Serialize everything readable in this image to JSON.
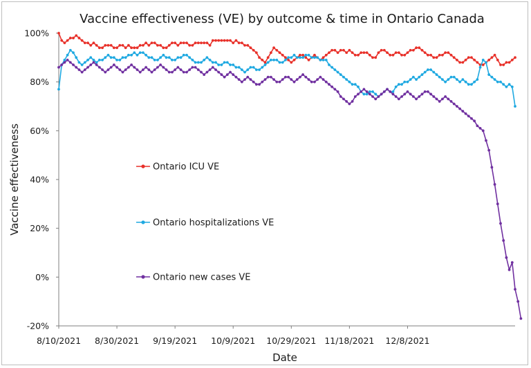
{
  "chart_data": {
    "type": "line",
    "title": "Vaccine effectiveness (VE) by outcome & time in Ontario Canada",
    "xlabel": "Date",
    "ylabel": "Vaccine effectiveness",
    "x_start": "8/10/2021",
    "x_end": "12/28/2021",
    "x_ticks": [
      "8/10/2021",
      "8/30/2021",
      "9/19/2021",
      "10/9/2021",
      "10/29/2021",
      "11/18/2021",
      "12/8/2021"
    ],
    "y_ticks": [
      "100%",
      "80%",
      "60%",
      "40%",
      "20%",
      "0%",
      "-20%"
    ],
    "ylim": [
      -20,
      100
    ],
    "grid": false,
    "series": [
      {
        "name": "Ontario ICU VE",
        "color": "#e8312a",
        "values": [
          100,
          97,
          96,
          97,
          98,
          98,
          99,
          98,
          97,
          96,
          96,
          95,
          96,
          95,
          94,
          94,
          95,
          95,
          95,
          94,
          94,
          95,
          95,
          94,
          95,
          94,
          94,
          94,
          95,
          95,
          96,
          95,
          96,
          96,
          95,
          95,
          94,
          94,
          95,
          96,
          96,
          95,
          96,
          96,
          96,
          95,
          95,
          96,
          96,
          96,
          96,
          96,
          95,
          97,
          97,
          97,
          97,
          97,
          97,
          97,
          96,
          97,
          96,
          96,
          95,
          95,
          94,
          93,
          92,
          90,
          89,
          88,
          90,
          92,
          94,
          93,
          92,
          91,
          90,
          89,
          88,
          89,
          90,
          91,
          91,
          90,
          89,
          90,
          91,
          90,
          89,
          90,
          91,
          92,
          93,
          93,
          92,
          93,
          93,
          92,
          93,
          92,
          91,
          91,
          92,
          92,
          92,
          91,
          90,
          90,
          92,
          93,
          93,
          92,
          91,
          91,
          92,
          92,
          91,
          91,
          92,
          93,
          93,
          94,
          94,
          93,
          92,
          91,
          91,
          90,
          90,
          91,
          91,
          92,
          92,
          91,
          90,
          89,
          88,
          88,
          89,
          90,
          90,
          89,
          88,
          87,
          87,
          88,
          89,
          90,
          91,
          89,
          87,
          87,
          88,
          88,
          89,
          90
        ]
      },
      {
        "name": "Ontario hospitalizations VE",
        "color": "#1fa9e1",
        "values": [
          77,
          87,
          89,
          91,
          93,
          92,
          90,
          88,
          87,
          88,
          89,
          90,
          89,
          88,
          89,
          89,
          90,
          91,
          90,
          90,
          89,
          89,
          90,
          90,
          91,
          91,
          92,
          91,
          92,
          92,
          91,
          90,
          90,
          89,
          89,
          90,
          91,
          90,
          90,
          89,
          89,
          90,
          90,
          91,
          91,
          90,
          89,
          88,
          88,
          88,
          89,
          90,
          89,
          88,
          88,
          87,
          87,
          88,
          88,
          87,
          87,
          86,
          86,
          85,
          84,
          85,
          86,
          86,
          85,
          85,
          86,
          87,
          88,
          89,
          89,
          89,
          88,
          88,
          89,
          90,
          90,
          91,
          90,
          90,
          90,
          91,
          91,
          90,
          90,
          90,
          89,
          89,
          89,
          87,
          86,
          85,
          84,
          83,
          82,
          81,
          80,
          79,
          79,
          78,
          76,
          75,
          75,
          76,
          76,
          75,
          74,
          75,
          76,
          77,
          76,
          76,
          78,
          79,
          79,
          80,
          80,
          81,
          82,
          81,
          82,
          83,
          84,
          85,
          85,
          84,
          83,
          82,
          81,
          80,
          81,
          82,
          82,
          81,
          80,
          81,
          80,
          79,
          79,
          80,
          81,
          86,
          89,
          88,
          83,
          82,
          81,
          80,
          80,
          79,
          78,
          79,
          78,
          70
        ]
      },
      {
        "name": "Ontario new cases VE",
        "color": "#7030a0",
        "values": [
          86,
          87,
          88,
          89,
          88,
          87,
          86,
          85,
          84,
          85,
          86,
          87,
          88,
          87,
          86,
          85,
          84,
          85,
          86,
          87,
          86,
          85,
          84,
          85,
          86,
          87,
          86,
          85,
          84,
          85,
          86,
          85,
          84,
          85,
          86,
          87,
          86,
          85,
          84,
          84,
          85,
          86,
          85,
          84,
          84,
          85,
          86,
          86,
          85,
          84,
          83,
          84,
          85,
          86,
          85,
          84,
          83,
          82,
          83,
          84,
          83,
          82,
          81,
          80,
          81,
          82,
          81,
          80,
          79,
          79,
          80,
          81,
          82,
          82,
          81,
          80,
          80,
          81,
          82,
          82,
          81,
          80,
          81,
          82,
          83,
          82,
          81,
          80,
          80,
          81,
          82,
          81,
          80,
          79,
          78,
          77,
          76,
          74,
          73,
          72,
          71,
          72,
          74,
          75,
          76,
          77,
          76,
          75,
          74,
          73,
          74,
          75,
          76,
          77,
          76,
          75,
          74,
          73,
          74,
          75,
          76,
          75,
          74,
          73,
          74,
          75,
          76,
          76,
          75,
          74,
          73,
          72,
          73,
          74,
          73,
          72,
          71,
          70,
          69,
          68,
          67,
          66,
          65,
          64,
          62,
          61,
          60,
          56,
          52,
          45,
          38,
          30,
          22,
          15,
          8,
          3,
          6,
          -5,
          -10,
          -17
        ]
      }
    ]
  }
}
